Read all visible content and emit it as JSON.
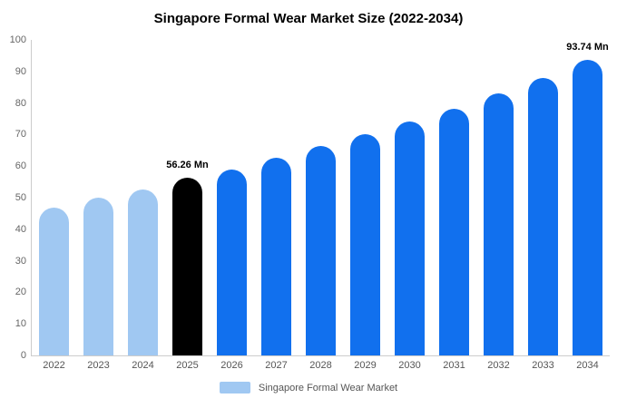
{
  "chart_data": {
    "type": "bar",
    "title": "Singapore Formal Wear Market Size (2022-2034)",
    "categories": [
      "2022",
      "2023",
      "2024",
      "2025",
      "2026",
      "2027",
      "2028",
      "2029",
      "2030",
      "2031",
      "2032",
      "2033",
      "2034"
    ],
    "values": [
      46.8,
      50.1,
      52.6,
      56.26,
      59.0,
      62.6,
      66.4,
      70.1,
      74.1,
      78.2,
      83.0,
      87.8,
      93.74
    ],
    "bar_colors": [
      "#a0c8f2",
      "#a0c8f2",
      "#a0c8f2",
      "#000000",
      "#1170ee",
      "#1170ee",
      "#1170ee",
      "#1170ee",
      "#1170ee",
      "#1170ee",
      "#1170ee",
      "#1170ee",
      "#1170ee"
    ],
    "annotations": [
      {
        "index": 3,
        "text": "56.26 Mn"
      },
      {
        "index": 12,
        "text": "93.74 Mn"
      }
    ],
    "xlabel": "",
    "ylabel": "",
    "ylim": [
      0,
      100
    ],
    "ytick_step": 10,
    "grid": false,
    "legend_position": "bottom"
  },
  "legend": {
    "label": "Singapore Formal Wear Market",
    "swatch_color": "#a0c8f2"
  }
}
